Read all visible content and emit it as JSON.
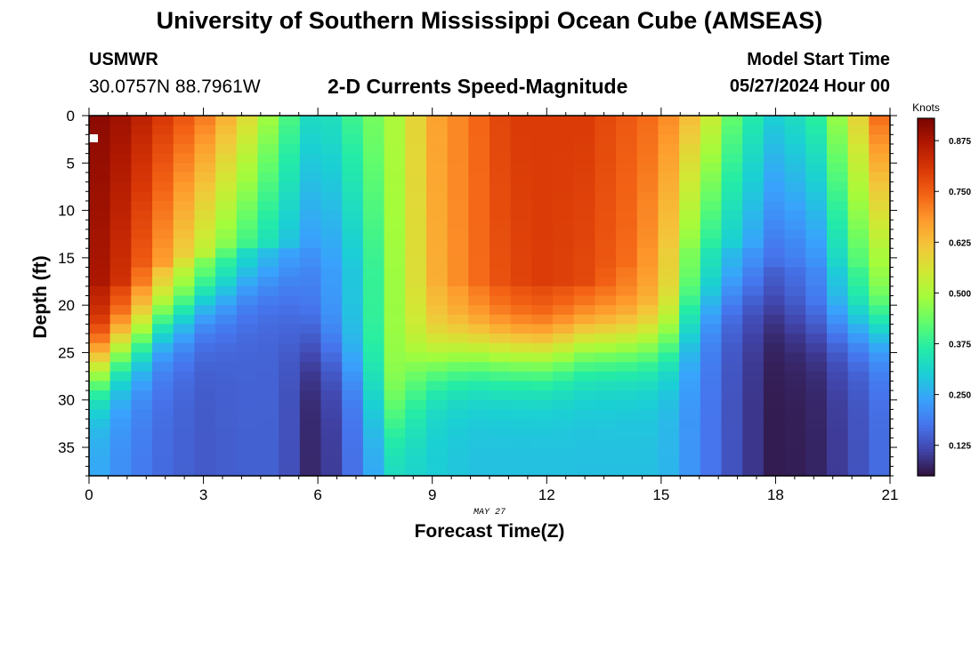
{
  "header": {
    "title_top": "University of Southern Mississippi Ocean Cube (AMSEAS)",
    "title_bottom": "University of Southern Mississippi Ocean Cube (AMSEAS)",
    "station": "USMWR",
    "coords": "30.0757N  88.7961W",
    "subtitle": "2-D Currents Speed-Magnitude",
    "model_start_label": "Model Start Time",
    "model_start_value": "05/27/2024 Hour 00"
  },
  "chart_data": {
    "type": "heatmap",
    "title": "2-D Currents Speed-Magnitude",
    "xlabel": "Forecast Time(Z)",
    "ylabel": "Depth (ft)",
    "x_date_label": "MAY 27",
    "xlim": [
      0,
      21
    ],
    "ylim": [
      0,
      38
    ],
    "y_inverted": true,
    "x_ticks": [
      0,
      3,
      6,
      9,
      12,
      15,
      18,
      21
    ],
    "x_tick_labels": [
      "0",
      "3",
      "6",
      "9",
      "12",
      "15",
      "18",
      "21"
    ],
    "y_ticks": [
      0,
      5,
      10,
      15,
      20,
      25,
      30,
      35
    ],
    "y_tick_labels": [
      "0",
      "5",
      "10",
      "15",
      "20",
      "25",
      "30",
      "35"
    ],
    "colorbar": {
      "label": "Knots",
      "range": [
        0.05,
        0.93
      ],
      "ticks": [
        0.125,
        0.25,
        0.375,
        0.5,
        0.625,
        0.75,
        0.875
      ],
      "tick_labels": [
        "0.125",
        "0.250",
        "0.375",
        "0.500",
        "0.625",
        "0.750",
        "0.875"
      ],
      "colors": [
        "#30123b",
        "#4145ab",
        "#4675ed",
        "#39a2fc",
        "#1bcfd4",
        "#24eca6",
        "#61fc6c",
        "#a4fc3b",
        "#d1e834",
        "#f3c63a",
        "#fe9b2d",
        "#f36315",
        "#d93806",
        "#b11901",
        "#7a0402"
      ]
    },
    "hours": [
      0,
      1,
      2,
      3,
      4,
      5,
      6,
      7,
      8,
      9,
      10,
      11,
      12,
      13,
      14,
      15,
      16,
      17,
      18,
      19,
      20,
      21
    ],
    "profiles": [
      {
        "hour": 0,
        "surface": 0.92,
        "mid": 0.9,
        "mid_depth": 18,
        "bottom": 0.26,
        "transition": 27
      },
      {
        "hour": 1,
        "surface": 0.88,
        "mid": 0.8,
        "mid_depth": 18,
        "bottom": 0.2,
        "transition": 24
      },
      {
        "hour": 2,
        "surface": 0.8,
        "mid": 0.66,
        "mid_depth": 16,
        "bottom": 0.16,
        "transition": 21
      },
      {
        "hour": 3,
        "surface": 0.72,
        "mid": 0.52,
        "mid_depth": 15,
        "bottom": 0.14,
        "transition": 19
      },
      {
        "hour": 4,
        "surface": 0.6,
        "mid": 0.4,
        "mid_depth": 14,
        "bottom": 0.15,
        "transition": 17
      },
      {
        "hour": 5,
        "surface": 0.44,
        "mid": 0.3,
        "mid_depth": 14,
        "bottom": 0.15,
        "transition": 16
      },
      {
        "hour": 6,
        "surface": 0.3,
        "mid": 0.2,
        "mid_depth": 16,
        "bottom": 0.06,
        "transition": 24
      },
      {
        "hour": 7,
        "surface": 0.4,
        "mid": 0.3,
        "mid_depth": 16,
        "bottom": 0.18,
        "transition": 27
      },
      {
        "hour": 8,
        "surface": 0.5,
        "mid": 0.48,
        "mid_depth": 18,
        "bottom": 0.32,
        "transition": 32
      },
      {
        "hour": 9,
        "surface": 0.66,
        "mid": 0.64,
        "mid_depth": 18,
        "bottom": 0.3,
        "transition": 26
      },
      {
        "hour": 10,
        "surface": 0.72,
        "mid": 0.72,
        "mid_depth": 18,
        "bottom": 0.28,
        "transition": 25
      },
      {
        "hour": 11,
        "surface": 0.8,
        "mid": 0.78,
        "mid_depth": 18,
        "bottom": 0.28,
        "transition": 25
      },
      {
        "hour": 12,
        "surface": 0.8,
        "mid": 0.8,
        "mid_depth": 18,
        "bottom": 0.28,
        "transition": 25
      },
      {
        "hour": 13,
        "surface": 0.8,
        "mid": 0.78,
        "mid_depth": 18,
        "bottom": 0.28,
        "transition": 24
      },
      {
        "hour": 14,
        "surface": 0.76,
        "mid": 0.74,
        "mid_depth": 16,
        "bottom": 0.28,
        "transition": 24
      },
      {
        "hour": 15,
        "surface": 0.72,
        "mid": 0.66,
        "mid_depth": 14,
        "bottom": 0.28,
        "transition": 24
      },
      {
        "hour": 16,
        "surface": 0.6,
        "mid": 0.4,
        "mid_depth": 14,
        "bottom": 0.2,
        "transition": 20
      },
      {
        "hour": 17,
        "surface": 0.4,
        "mid": 0.28,
        "mid_depth": 14,
        "bottom": 0.12,
        "transition": 18
      },
      {
        "hour": 18,
        "surface": 0.3,
        "mid": 0.16,
        "mid_depth": 16,
        "bottom": 0.06,
        "transition": 20
      },
      {
        "hour": 19,
        "surface": 0.36,
        "mid": 0.2,
        "mid_depth": 16,
        "bottom": 0.07,
        "transition": 22
      },
      {
        "hour": 20,
        "surface": 0.55,
        "mid": 0.38,
        "mid_depth": 16,
        "bottom": 0.12,
        "transition": 22
      },
      {
        "hour": 21,
        "surface": 0.8,
        "mid": 0.55,
        "mid_depth": 14,
        "bottom": 0.18,
        "transition": 22
      }
    ]
  }
}
